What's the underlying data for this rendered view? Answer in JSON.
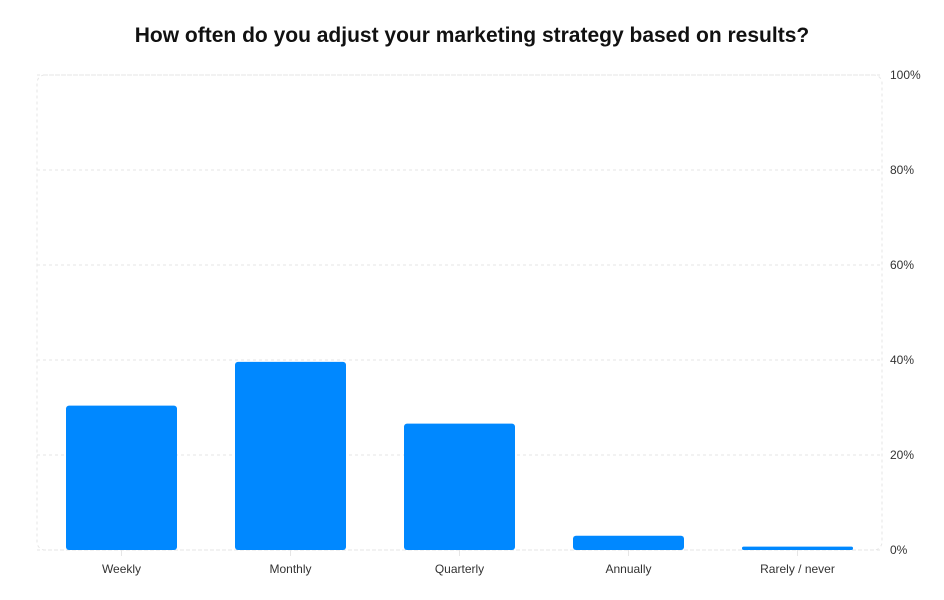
{
  "chart_data": {
    "type": "bar",
    "title": "How often do you adjust your marketing strategy based on results?",
    "categories": [
      "Weekly",
      "Monthly",
      "Quarterly",
      "Annually",
      "Rarely / never"
    ],
    "values": [
      30.4,
      39.6,
      26.6,
      3.0,
      0.7
    ],
    "ylim": [
      0,
      100
    ],
    "yticks": [
      "0%",
      "20%",
      "40%",
      "60%",
      "80%",
      "100%"
    ],
    "ytick_values": [
      0,
      20,
      40,
      60,
      80,
      100
    ],
    "y_axis_position": "right",
    "grid": true,
    "bar_color": "#0088FF",
    "grid_color": "#E6E6E6"
  }
}
